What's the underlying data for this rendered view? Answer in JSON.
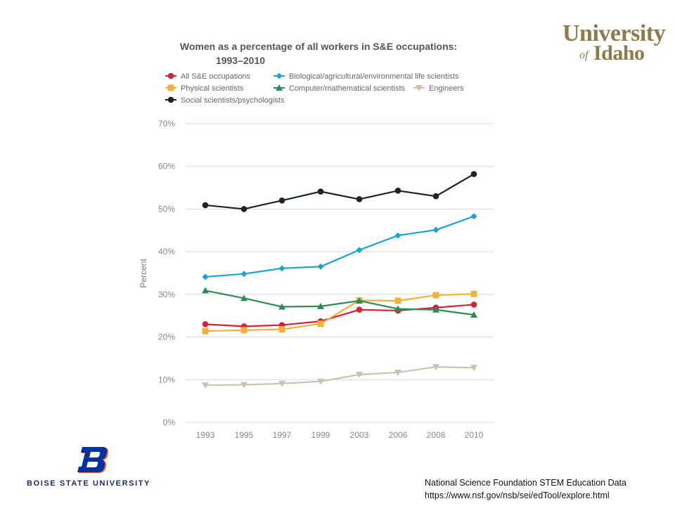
{
  "chart_data": {
    "type": "line",
    "title": "Women as a percentage of all workers in S&E occupations:",
    "subtitle": "1993–2010",
    "categories": [
      "1993",
      "1995",
      "1997",
      "1999",
      "2003",
      "2006",
      "2008",
      "2010"
    ],
    "ylabel": "Percent",
    "xlabel": "",
    "ylim": [
      0,
      70
    ],
    "yticks": [
      "0%",
      "10%",
      "20%",
      "30%",
      "40%",
      "50%",
      "60%",
      "70%"
    ],
    "grid": "horizontal",
    "legend_position": "top-left",
    "series": [
      {
        "name": "All S&E occupations",
        "color": "#d6213a",
        "marker": "circle",
        "values": [
          23.0,
          22.5,
          22.8,
          23.7,
          26.4,
          26.2,
          26.9,
          27.6
        ]
      },
      {
        "name": "Biological/agricultural/environmental life scientists",
        "color": "#1ba3d3",
        "marker": "diamond",
        "values": [
          34.1,
          34.8,
          36.1,
          36.5,
          40.4,
          43.8,
          45.1,
          48.3
        ]
      },
      {
        "name": "Physical scientists",
        "color": "#f0b03c",
        "marker": "square",
        "values": [
          21.4,
          21.6,
          21.8,
          23.1,
          28.6,
          28.5,
          29.8,
          30.1
        ]
      },
      {
        "name": "Computer/mathematical scientists",
        "color": "#2f8a57",
        "marker": "triangle-up",
        "values": [
          30.9,
          29.1,
          27.1,
          27.2,
          28.5,
          26.6,
          26.4,
          25.2
        ]
      },
      {
        "name": "Engineers",
        "color": "#cbc1b0",
        "marker": "triangle-down",
        "values": [
          8.7,
          8.8,
          9.1,
          9.6,
          11.2,
          11.7,
          13.0,
          12.8
        ]
      },
      {
        "name": "Social scientists/psychologists",
        "color": "#1b2621",
        "marker": "circle",
        "values": [
          50.9,
          50.0,
          52.0,
          54.1,
          52.3,
          54.3,
          53.0,
          58.2
        ]
      }
    ]
  },
  "logos": {
    "uidaho": {
      "line1": "University",
      "of": "of",
      "line2": "Idaho",
      "color": "#8d7a4d"
    },
    "boise_state": {
      "mark": "B",
      "wordmark": "BOISE STATE UNIVERSITY",
      "primary_color": "#0033a0",
      "accent_color": "#f1632a"
    }
  },
  "source": {
    "line1": "National Science Foundation STEM Education Data",
    "line2": "https://www.nsf.gov/nsb/sei/edTool/explore.html"
  }
}
